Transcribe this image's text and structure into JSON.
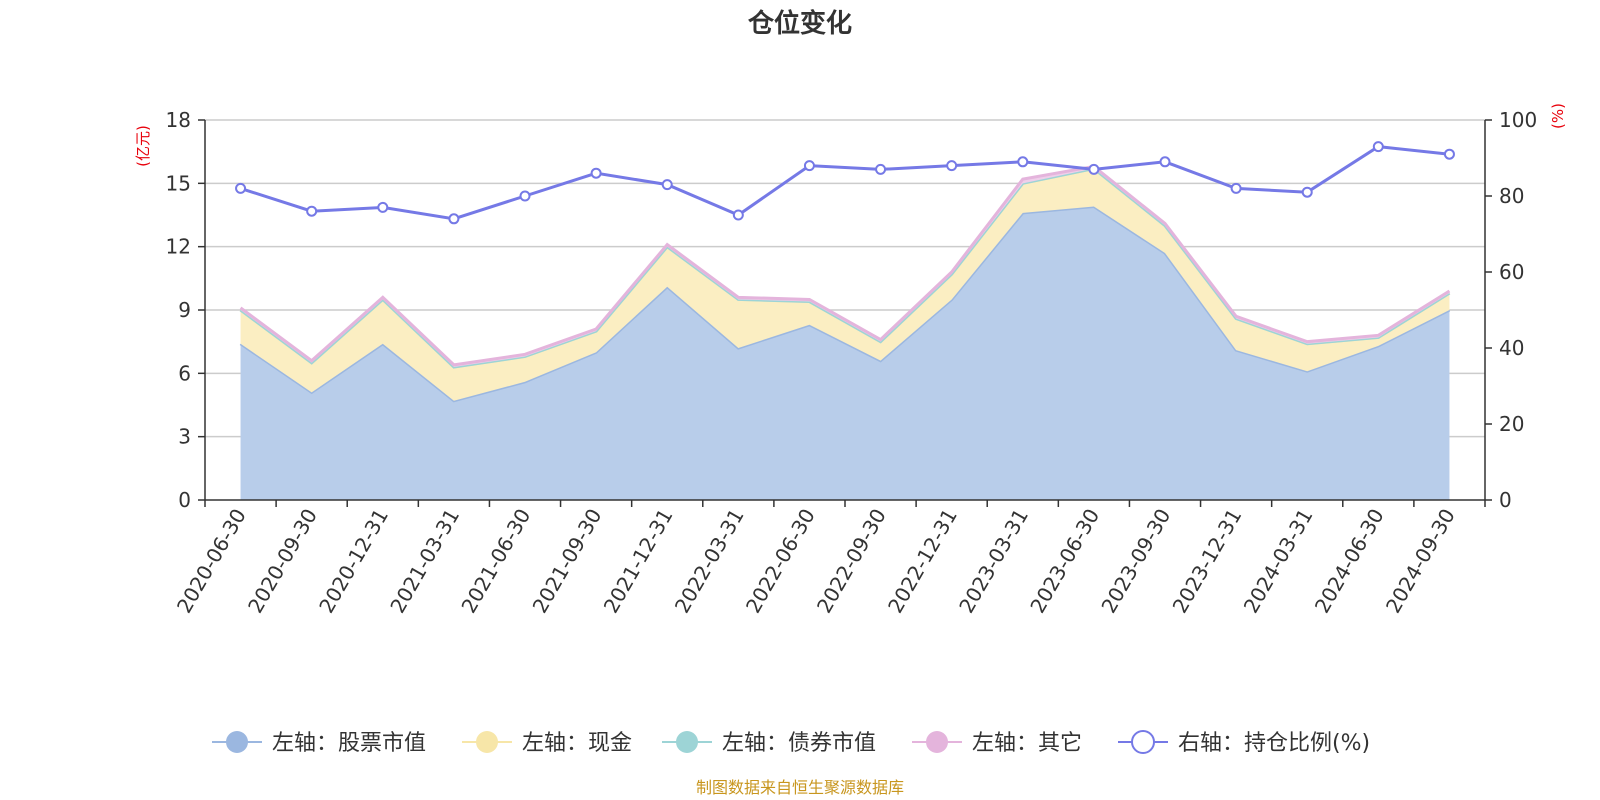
{
  "chart_data": {
    "type": "area",
    "title": "仓位变化",
    "left_axis_unit": "(亿元)",
    "right_axis_unit": "(%)",
    "categories": [
      "2020-06-30",
      "2020-09-30",
      "2020-12-31",
      "2021-03-31",
      "2021-06-30",
      "2021-09-30",
      "2021-12-31",
      "2022-03-31",
      "2022-06-30",
      "2022-09-30",
      "2022-12-31",
      "2023-03-31",
      "2023-06-30",
      "2023-09-30",
      "2023-12-31",
      "2024-03-31",
      "2024-06-30",
      "2024-09-30"
    ],
    "ylim_left": [
      0,
      18
    ],
    "yticks_left": [
      0,
      3,
      6,
      9,
      12,
      15,
      18
    ],
    "ylim_right": [
      0,
      100
    ],
    "yticks_right": [
      0,
      20,
      40,
      60,
      80,
      100
    ],
    "grid": true,
    "legend_position": "bottom",
    "series": [
      {
        "name": "左轴：股票市值",
        "axis": "left",
        "stacked": true,
        "color": "#9bb7e0",
        "fill": "#b8cdea",
        "values": [
          7.4,
          5.1,
          7.4,
          4.7,
          5.6,
          7.0,
          10.1,
          7.2,
          8.3,
          6.6,
          9.5,
          13.6,
          13.9,
          11.7,
          7.1,
          6.1,
          7.3,
          9.0
        ]
      },
      {
        "name": "左轴：现金",
        "axis": "left",
        "stacked": true,
        "color": "#f7e6a8",
        "fill": "#fbeec2",
        "values": [
          1.6,
          1.4,
          2.1,
          1.6,
          1.2,
          1.0,
          1.9,
          2.3,
          1.1,
          0.9,
          1.2,
          1.4,
          1.8,
          1.3,
          1.5,
          1.3,
          0.4,
          0.8
        ]
      },
      {
        "name": "左轴：债券市值",
        "axis": "left",
        "stacked": true,
        "color": "#9dd4d6",
        "fill": "#bfe5e6",
        "values": [
          0,
          0,
          0,
          0,
          0,
          0,
          0,
          0,
          0,
          0,
          0,
          0,
          0,
          0,
          0,
          0,
          0,
          0
        ]
      },
      {
        "name": "左轴：其它",
        "axis": "left",
        "stacked": true,
        "color": "#e4b4dc",
        "fill": "#efcfea",
        "values": [
          0.1,
          0.1,
          0.1,
          0.1,
          0.1,
          0.1,
          0.1,
          0.1,
          0.1,
          0.1,
          0.1,
          0.2,
          0.1,
          0.1,
          0.1,
          0.1,
          0.1,
          0.1
        ]
      },
      {
        "name": "右轴：持仓比例(%)",
        "axis": "right",
        "stacked": false,
        "color": "#7579e6",
        "values": [
          82,
          76,
          77,
          74,
          80,
          86,
          83,
          75,
          88,
          87,
          88,
          89,
          87,
          89,
          82,
          81,
          93,
          91
        ]
      }
    ],
    "source": "制图数据来自恒生聚源数据库"
  }
}
